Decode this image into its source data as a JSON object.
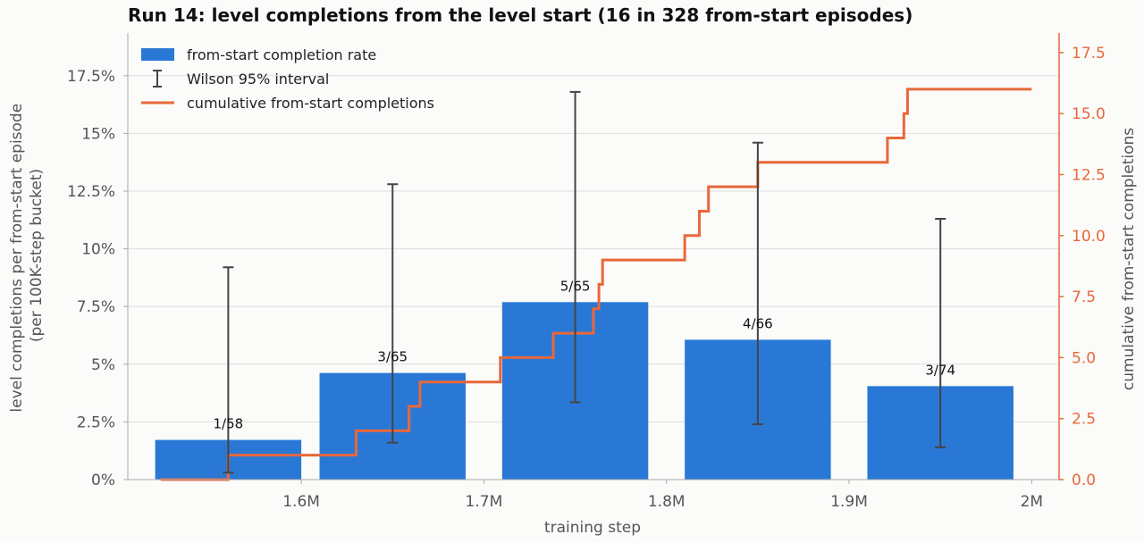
{
  "chart_data": {
    "type": "bar",
    "title": "Run 14: level completions from the level start (16 in 328 from-start episodes)",
    "xlabel": "training step",
    "ylabel_lines": [
      "level completions per from-start episode",
      "(per 100K-step bucket)"
    ],
    "ylabel_right": "cumulative from-start completions",
    "x_ticks": [
      {
        "value": 1600000,
        "label": "1.6M"
      },
      {
        "value": 1700000,
        "label": "1.7M"
      },
      {
        "value": 1800000,
        "label": "1.8M"
      },
      {
        "value": 1900000,
        "label": "1.9M"
      },
      {
        "value": 2000000,
        "label": "2M"
      }
    ],
    "xlim": [
      1505000,
      2015000
    ],
    "y_left_ticks": [
      {
        "value": 0,
        "label": "0%"
      },
      {
        "value": 2.5,
        "label": "2.5%"
      },
      {
        "value": 5,
        "label": "5%"
      },
      {
        "value": 7.5,
        "label": "7.5%"
      },
      {
        "value": 10,
        "label": "10%"
      },
      {
        "value": 12.5,
        "label": "12.5%"
      },
      {
        "value": 15,
        "label": "15%"
      },
      {
        "value": 17.5,
        "label": "17.5%"
      }
    ],
    "ylim_left": [
      0,
      19.35
    ],
    "y_right_ticks": [
      {
        "value": 0,
        "label": "0.0"
      },
      {
        "value": 2.5,
        "label": "2.5"
      },
      {
        "value": 5,
        "label": "5.0"
      },
      {
        "value": 7.5,
        "label": "7.5"
      },
      {
        "value": 10,
        "label": "10.0"
      },
      {
        "value": 12.5,
        "label": "12.5"
      },
      {
        "value": 15,
        "label": "15.0"
      },
      {
        "value": 17.5,
        "label": "17.5"
      }
    ],
    "ylim_right": [
      0,
      18.3
    ],
    "grid": true,
    "legend_position": "top-left",
    "bars": [
      {
        "center": 1560000,
        "value": 1.72,
        "err_low": 0.3,
        "err_high": 9.2,
        "label": "1/58"
      },
      {
        "center": 1650000,
        "value": 4.62,
        "err_low": 1.6,
        "err_high": 12.8,
        "label": "3/65"
      },
      {
        "center": 1750000,
        "value": 7.69,
        "err_low": 3.35,
        "err_high": 16.8,
        "label": "5/65"
      },
      {
        "center": 1850000,
        "value": 6.06,
        "err_low": 2.4,
        "err_high": 14.6,
        "label": "4/66"
      },
      {
        "center": 1950000,
        "value": 4.05,
        "err_low": 1.4,
        "err_high": 11.3,
        "label": "3/74"
      }
    ],
    "bar_width": 80000,
    "cumulative": {
      "name": "cumulative from-start completions",
      "steps": [
        {
          "x": 1523000,
          "y": 0
        },
        {
          "x": 1560000,
          "y": 1
        },
        {
          "x": 1630000,
          "y": 2
        },
        {
          "x": 1659000,
          "y": 3
        },
        {
          "x": 1665000,
          "y": 4
        },
        {
          "x": 1709000,
          "y": 5
        },
        {
          "x": 1738000,
          "y": 6
        },
        {
          "x": 1760000,
          "y": 7
        },
        {
          "x": 1763000,
          "y": 8
        },
        {
          "x": 1765000,
          "y": 9
        },
        {
          "x": 1810000,
          "y": 10
        },
        {
          "x": 1818000,
          "y": 11
        },
        {
          "x": 1823000,
          "y": 12
        },
        {
          "x": 1850000,
          "y": 13
        },
        {
          "x": 1921000,
          "y": 14
        },
        {
          "x": 1930000,
          "y": 15
        },
        {
          "x": 1932000,
          "y": 16
        }
      ],
      "end_x": 2000000
    },
    "legend": [
      {
        "kind": "bar",
        "label": "from-start completion rate"
      },
      {
        "kind": "errorbar",
        "label": "Wilson 95% interval"
      },
      {
        "kind": "line",
        "label": "cumulative from-start completions"
      }
    ],
    "colors": {
      "bar": "#2a78d6",
      "line": "#e8683a",
      "errorbar": "#444444",
      "grid": "#dddddd",
      "axis": "#aaaaaa",
      "right_axis": "#e8683a"
    }
  }
}
